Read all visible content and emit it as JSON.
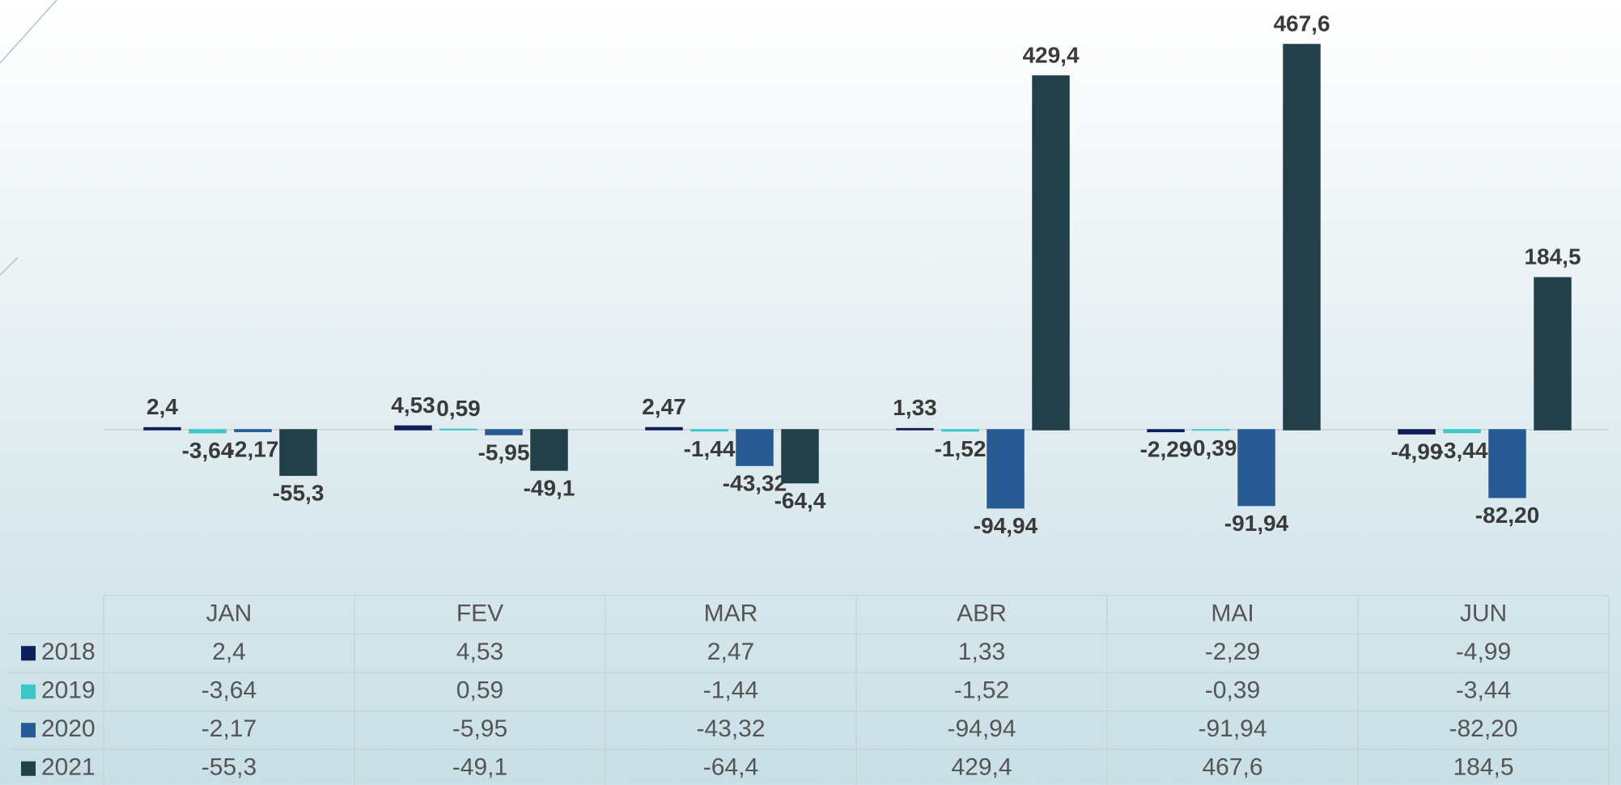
{
  "chart_data": {
    "type": "bar",
    "categories": [
      "JAN",
      "FEV",
      "MAR",
      "ABR",
      "MAI",
      "JUN"
    ],
    "series": [
      {
        "name": "2018",
        "color": "#0e1f5b",
        "values": [
          2.4,
          4.53,
          2.47,
          1.33,
          -2.29,
          -4.99
        ],
        "value_labels": [
          "2,4",
          "4,53",
          "2,47",
          "1,33",
          "-2,29",
          "-4,99"
        ]
      },
      {
        "name": "2019",
        "color": "#3cc8c8",
        "values": [
          -3.64,
          0.59,
          -1.44,
          -1.52,
          -0.39,
          -3.44
        ],
        "value_labels": [
          "-3,64",
          "0,59",
          "-1,44",
          "-1,52",
          "-0,39",
          "-3,44"
        ]
      },
      {
        "name": "2020",
        "color": "#285a94",
        "values": [
          -2.17,
          -5.95,
          -43.32,
          -94.94,
          -91.94,
          -82.2
        ],
        "value_labels": [
          "-2,17",
          "-5,95",
          "-43,32",
          "-94,94",
          "-91,94",
          "-82,20"
        ]
      },
      {
        "name": "2021",
        "color": "#22404a",
        "values": [
          -55.3,
          -49.1,
          -64.4,
          429.4,
          467.6,
          184.5
        ],
        "value_labels": [
          "-55,3",
          "-49,1",
          "-64,4",
          "429,4",
          "467,6",
          "184,5"
        ]
      }
    ]
  }
}
